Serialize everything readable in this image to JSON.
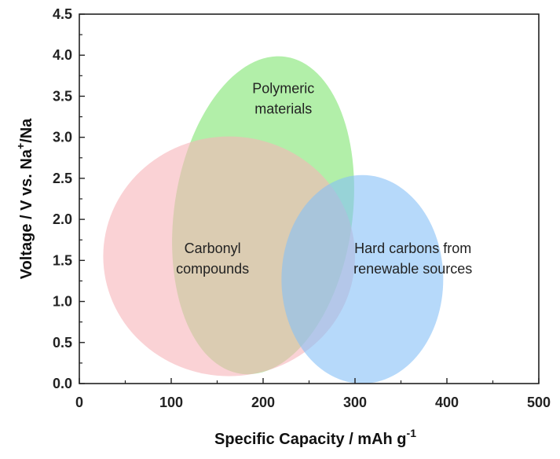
{
  "chart_data": {
    "type": "bubble-region",
    "title": "",
    "xlabel": {
      "main": "Specific Capacity / mAh g",
      "sup": "-1"
    },
    "ylabel": {
      "part1": "Voltage / V vs. Na",
      "sup": "+",
      "part2": "/Na"
    },
    "xlim": [
      0,
      500
    ],
    "ylim": [
      0,
      4.5
    ],
    "xticks": [
      0,
      100,
      200,
      300,
      400,
      500
    ],
    "yticks": [
      0.0,
      0.5,
      1.0,
      1.5,
      2.0,
      2.5,
      3.0,
      3.5,
      4.0,
      4.5
    ],
    "ytick_labels": [
      "0.0",
      "0.5",
      "1.0",
      "1.5",
      "2.0",
      "2.5",
      "3.0",
      "3.5",
      "4.0",
      "4.5"
    ],
    "grid": false,
    "regions": [
      {
        "id": "polymeric",
        "label_lines": [
          "Polymeric",
          "materials"
        ],
        "center": [
          200,
          2.05
        ],
        "radius": [
          97,
          1.95
        ],
        "rotation_deg": 8,
        "color": "#7ee56f",
        "label_pos": [
          222,
          3.5
        ]
      },
      {
        "id": "carbonyl",
        "label_lines": [
          "Carbonyl",
          "compounds"
        ],
        "center": [
          163,
          1.55
        ],
        "radius": [
          137,
          1.46
        ],
        "rotation_deg": 0,
        "color": "#f6b4b9",
        "label_pos": [
          145,
          1.55
        ]
      },
      {
        "id": "hard-carbons",
        "label_lines": [
          "Hard carbons from",
          "renewable sources"
        ],
        "center": [
          308,
          1.27
        ],
        "radius": [
          88,
          1.27
        ],
        "rotation_deg": 0,
        "color": "#85bff7",
        "label_pos": [
          363,
          1.55
        ]
      }
    ]
  }
}
